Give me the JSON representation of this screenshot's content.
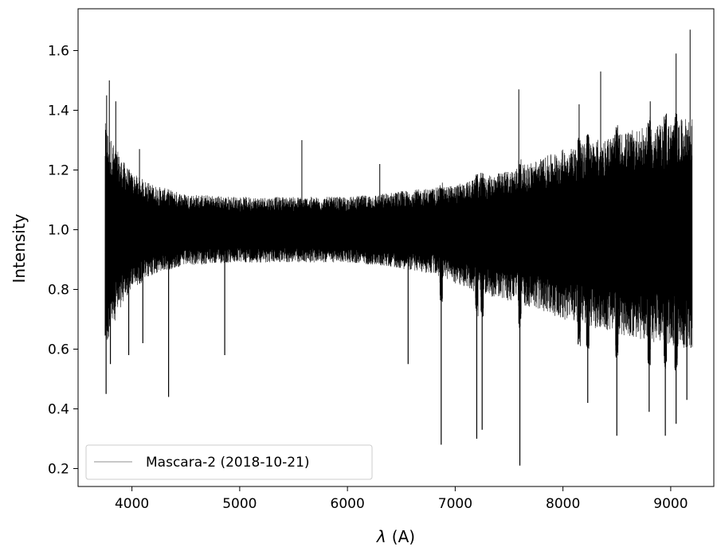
{
  "chart_data": {
    "type": "line",
    "title": "",
    "xlabel_symbol": "λ",
    "xlabel_unit": "(A)",
    "ylabel": "Intensity",
    "xlim": [
      3500,
      9400
    ],
    "ylim": [
      0.14,
      1.74
    ],
    "x_ticks": [
      4000,
      5000,
      6000,
      7000,
      8000,
      9000
    ],
    "x_tick_labels": [
      "4000",
      "5000",
      "6000",
      "7000",
      "8000",
      "9000"
    ],
    "y_ticks": [
      0.2,
      0.4,
      0.6,
      0.8,
      1.0,
      1.2,
      1.4,
      1.6
    ],
    "y_tick_labels": [
      "0.2",
      "0.4",
      "0.6",
      "0.8",
      "1.0",
      "1.2",
      "1.4",
      "1.6"
    ],
    "grid": false,
    "legend_position": "lower-left",
    "series": [
      {
        "name": "Mascara-2 (2018-10-21)",
        "legend_color": "#c8c8c8",
        "color": "#000000",
        "x_range": [
          3750,
          9200
        ],
        "baseline": 1.0,
        "envelope": {
          "x": [
            3750,
            3800,
            3900,
            4000,
            4200,
            4500,
            5000,
            5500,
            6000,
            6300,
            6500,
            6800,
            7000,
            7200,
            7500,
            7800,
            8000,
            8300,
            8600,
            9000,
            9200
          ],
          "y_upper": [
            1.36,
            1.31,
            1.24,
            1.19,
            1.15,
            1.12,
            1.11,
            1.11,
            1.11,
            1.12,
            1.13,
            1.14,
            1.15,
            1.17,
            1.2,
            1.24,
            1.27,
            1.3,
            1.33,
            1.36,
            1.38
          ],
          "y_lower": [
            0.58,
            0.66,
            0.74,
            0.8,
            0.85,
            0.88,
            0.89,
            0.89,
            0.89,
            0.88,
            0.87,
            0.85,
            0.82,
            0.79,
            0.76,
            0.73,
            0.7,
            0.67,
            0.64,
            0.61,
            0.6
          ]
        },
        "peak_spikes": [
          {
            "x": 3765,
            "y": 1.45
          },
          {
            "x": 3790,
            "y": 1.5
          },
          {
            "x": 3850,
            "y": 1.43
          },
          {
            "x": 4070,
            "y": 1.27
          },
          {
            "x": 5577,
            "y": 1.3
          },
          {
            "x": 6300,
            "y": 1.22
          },
          {
            "x": 7590,
            "y": 1.47
          },
          {
            "x": 8150,
            "y": 1.42
          },
          {
            "x": 8350,
            "y": 1.53
          },
          {
            "x": 8810,
            "y": 1.43
          },
          {
            "x": 9050,
            "y": 1.59
          },
          {
            "x": 9180,
            "y": 1.67
          }
        ],
        "absorption_lines": [
          {
            "x": 3760,
            "y": 0.45
          },
          {
            "x": 3800,
            "y": 0.55
          },
          {
            "x": 3970,
            "y": 0.58
          },
          {
            "x": 4101,
            "y": 0.62
          },
          {
            "x": 4340,
            "y": 0.44
          },
          {
            "x": 4861,
            "y": 0.58
          },
          {
            "x": 6563,
            "y": 0.55
          },
          {
            "x": 6870,
            "y": 0.28
          },
          {
            "x": 7200,
            "y": 0.3
          },
          {
            "x": 7250,
            "y": 0.33
          },
          {
            "x": 7600,
            "y": 0.21
          },
          {
            "x": 8230,
            "y": 0.42
          },
          {
            "x": 8500,
            "y": 0.31
          },
          {
            "x": 8800,
            "y": 0.39
          },
          {
            "x": 8950,
            "y": 0.31
          },
          {
            "x": 9050,
            "y": 0.35
          },
          {
            "x": 9150,
            "y": 0.43
          }
        ],
        "telluric_bands": [
          6870,
          7200,
          7250,
          7600,
          8150,
          8230,
          8500,
          8800,
          8950,
          9050
        ]
      }
    ]
  }
}
